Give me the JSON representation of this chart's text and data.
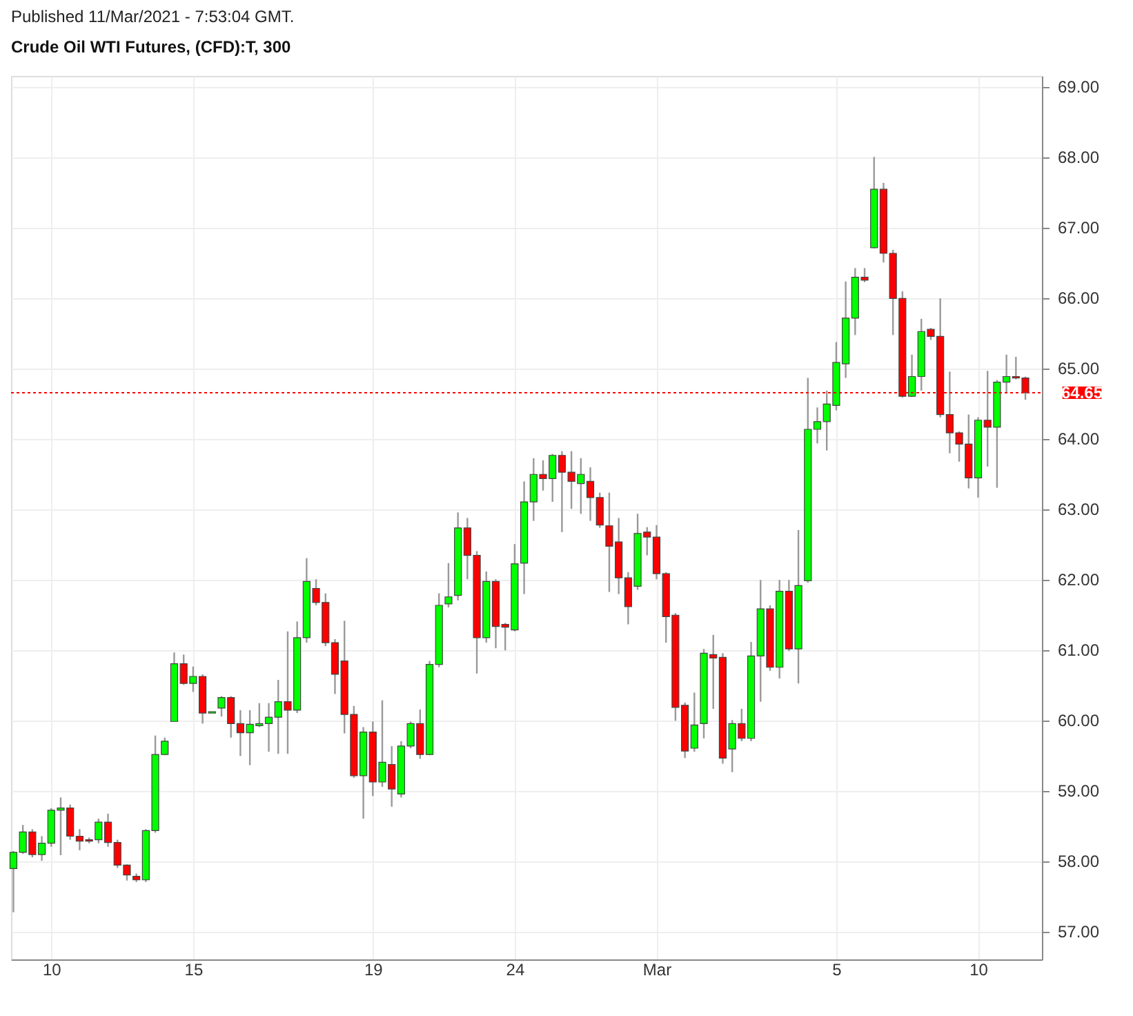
{
  "chart_data": {
    "type": "candlestick",
    "title": "Crude Oil WTI Futures, (CFD):T, 300",
    "annotations": [
      "Published 11/Mar/2021 - 7:53:04 GMT."
    ],
    "categories": [
      null,
      null,
      null,
      null,
      "10",
      null,
      null,
      null,
      null,
      null,
      null,
      null,
      null,
      null,
      null,
      null,
      null,
      null,
      null,
      "15",
      null,
      null,
      null,
      null,
      null,
      null,
      null,
      null,
      null,
      null,
      null,
      null,
      null,
      null,
      null,
      null,
      null,
      null,
      "19",
      null,
      null,
      null,
      null,
      null,
      null,
      null,
      null,
      null,
      null,
      null,
      null,
      null,
      null,
      "24",
      null,
      null,
      null,
      null,
      null,
      null,
      null,
      null,
      null,
      null,
      null,
      null,
      null,
      null,
      "Mar",
      null,
      null,
      null,
      null,
      null,
      null,
      null,
      null,
      null,
      null,
      null,
      null,
      null,
      null,
      null,
      null,
      null,
      null,
      "5",
      null,
      null,
      null,
      null,
      null,
      null,
      null,
      null,
      null,
      null,
      null,
      null,
      null,
      null,
      "10",
      null,
      null,
      null,
      null,
      null
    ],
    "ohlc": [
      [
        57.89,
        58.14,
        57.27,
        58.12
      ],
      [
        58.12,
        58.51,
        58.1,
        58.41
      ],
      [
        58.41,
        58.45,
        58.05,
        58.09
      ],
      [
        58.09,
        58.35,
        58.0,
        58.25
      ],
      [
        58.25,
        58.75,
        58.2,
        58.72
      ],
      [
        58.72,
        58.9,
        58.08,
        58.75
      ],
      [
        58.75,
        58.8,
        58.3,
        58.35
      ],
      [
        58.35,
        58.45,
        58.15,
        58.28
      ],
      [
        58.3,
        58.33,
        58.25,
        58.28
      ],
      [
        58.3,
        58.6,
        58.25,
        58.55
      ],
      [
        58.55,
        58.67,
        58.2,
        58.26
      ],
      [
        58.26,
        58.3,
        57.9,
        57.94
      ],
      [
        57.94,
        57.95,
        57.72,
        57.8
      ],
      [
        57.78,
        57.82,
        57.7,
        57.73
      ],
      [
        57.73,
        58.45,
        57.7,
        58.43
      ],
      [
        58.43,
        59.78,
        58.4,
        59.51
      ],
      [
        59.51,
        59.75,
        59.5,
        59.7
      ],
      [
        59.98,
        60.96,
        59.98,
        60.8
      ],
      [
        60.8,
        60.93,
        60.5,
        60.52
      ],
      [
        60.52,
        60.76,
        60.4,
        60.62
      ],
      [
        60.62,
        60.65,
        59.95,
        60.1
      ],
      [
        60.1,
        60.12,
        60.1,
        60.12
      ],
      [
        60.17,
        60.34,
        60.05,
        60.32
      ],
      [
        60.32,
        60.34,
        59.75,
        59.95
      ],
      [
        59.95,
        60.14,
        59.49,
        59.82
      ],
      [
        59.82,
        60.14,
        59.36,
        59.94
      ],
      [
        59.92,
        60.24,
        59.9,
        59.95
      ],
      [
        59.95,
        60.24,
        59.55,
        60.04
      ],
      [
        60.04,
        60.57,
        59.52,
        60.26
      ],
      [
        60.26,
        61.26,
        59.52,
        60.14
      ],
      [
        60.14,
        61.4,
        60.1,
        61.17
      ],
      [
        61.17,
        62.3,
        61.1,
        61.97
      ],
      [
        61.87,
        62.0,
        61.63,
        61.67
      ],
      [
        61.67,
        61.8,
        61.05,
        61.1
      ],
      [
        61.1,
        61.15,
        60.37,
        60.65
      ],
      [
        60.84,
        61.41,
        59.81,
        60.08
      ],
      [
        60.08,
        60.2,
        59.18,
        59.21
      ],
      [
        59.21,
        59.9,
        58.6,
        59.83
      ],
      [
        59.83,
        59.98,
        58.92,
        59.12
      ],
      [
        59.12,
        60.28,
        59.05,
        59.4
      ],
      [
        59.37,
        59.63,
        58.77,
        59.02
      ],
      [
        58.95,
        59.7,
        58.9,
        59.63
      ],
      [
        59.63,
        59.98,
        59.6,
        59.95
      ],
      [
        59.95,
        60.15,
        59.45,
        59.51
      ],
      [
        59.51,
        60.84,
        59.5,
        60.79
      ],
      [
        60.79,
        61.8,
        60.75,
        61.63
      ],
      [
        61.65,
        62.23,
        61.6,
        61.75
      ],
      [
        61.77,
        62.95,
        61.7,
        62.73
      ],
      [
        62.73,
        62.87,
        62.0,
        62.34
      ],
      [
        62.34,
        62.4,
        60.66,
        61.17
      ],
      [
        61.17,
        62.11,
        61.1,
        61.97
      ],
      [
        61.97,
        62.0,
        61.02,
        61.33
      ],
      [
        61.36,
        61.38,
        60.99,
        61.32
      ],
      [
        61.28,
        62.5,
        61.26,
        62.22
      ],
      [
        62.23,
        63.39,
        61.79,
        63.1
      ],
      [
        63.1,
        63.72,
        62.83,
        63.49
      ],
      [
        63.49,
        63.69,
        63.26,
        63.43
      ],
      [
        63.43,
        63.78,
        63.1,
        63.76
      ],
      [
        63.76,
        63.82,
        62.67,
        63.52
      ],
      [
        63.52,
        63.82,
        63.0,
        63.39
      ],
      [
        63.36,
        63.72,
        62.93,
        63.49
      ],
      [
        63.39,
        63.59,
        62.83,
        63.16
      ],
      [
        63.16,
        63.23,
        62.73,
        62.77
      ],
      [
        62.76,
        63.23,
        61.82,
        62.47
      ],
      [
        62.53,
        62.87,
        61.79,
        62.02
      ],
      [
        62.02,
        62.1,
        61.36,
        61.61
      ],
      [
        61.9,
        62.93,
        61.85,
        62.65
      ],
      [
        62.67,
        62.74,
        62.34,
        62.6
      ],
      [
        62.6,
        62.77,
        62.0,
        62.08
      ],
      [
        62.08,
        62.1,
        61.1,
        61.47
      ],
      [
        61.49,
        61.52,
        59.99,
        60.18
      ],
      [
        60.21,
        60.25,
        59.46,
        59.56
      ],
      [
        59.6,
        60.39,
        59.55,
        59.93
      ],
      [
        59.95,
        61.01,
        59.74,
        60.95
      ],
      [
        60.93,
        61.21,
        60.16,
        60.88
      ],
      [
        60.89,
        60.95,
        59.38,
        59.46
      ],
      [
        59.59,
        60.0,
        59.26,
        59.95
      ],
      [
        59.95,
        60.16,
        59.7,
        59.74
      ],
      [
        59.74,
        61.11,
        59.7,
        60.91
      ],
      [
        60.91,
        61.99,
        60.26,
        61.58
      ],
      [
        61.58,
        61.63,
        60.7,
        60.75
      ],
      [
        60.75,
        61.99,
        60.59,
        61.83
      ],
      [
        61.83,
        61.99,
        60.98,
        61.01
      ],
      [
        61.01,
        62.7,
        60.52,
        61.91
      ],
      [
        61.98,
        64.86,
        61.95,
        64.13
      ],
      [
        64.13,
        64.44,
        63.93,
        64.24
      ],
      [
        64.24,
        64.68,
        63.83,
        64.49
      ],
      [
        64.47,
        65.37,
        64.4,
        65.08
      ],
      [
        65.06,
        66.23,
        64.86,
        65.71
      ],
      [
        65.71,
        66.42,
        65.47,
        66.29
      ],
      [
        66.29,
        66.42,
        66.22,
        66.25
      ],
      [
        66.71,
        68.0,
        66.7,
        67.54
      ],
      [
        67.54,
        67.63,
        66.5,
        66.63
      ],
      [
        66.63,
        66.68,
        65.47,
        65.99
      ],
      [
        65.99,
        66.09,
        64.58,
        64.6
      ],
      [
        64.6,
        65.19,
        64.59,
        64.88
      ],
      [
        64.88,
        65.7,
        64.68,
        65.52
      ],
      [
        65.55,
        65.57,
        65.4,
        65.45
      ],
      [
        65.45,
        65.99,
        64.3,
        64.34
      ],
      [
        64.34,
        64.95,
        63.79,
        64.08
      ],
      [
        64.08,
        64.1,
        63.67,
        63.92
      ],
      [
        63.92,
        64.34,
        63.29,
        63.44
      ],
      [
        63.44,
        64.3,
        63.16,
        64.26
      ],
      [
        64.26,
        64.96,
        63.6,
        64.16
      ],
      [
        64.16,
        64.83,
        63.3,
        64.8
      ],
      [
        64.8,
        65.19,
        64.65,
        64.88
      ],
      [
        64.88,
        65.16,
        64.84,
        64.86
      ],
      [
        64.86,
        64.88,
        64.55,
        64.65
      ]
    ],
    "colors": [
      "#00ff00",
      "#00ff00",
      "#ff0000",
      "#00ff00",
      "#00ff00",
      "#00ff00",
      "#ff0000",
      "#ff0000",
      "#ff0000",
      "#00ff00",
      "#ff0000",
      "#ff0000",
      "#ff0000",
      "#ff0000",
      "#00ff00",
      "#00ff00",
      "#00ff00",
      "#00ff00",
      "#ff0000",
      "#00ff00",
      "#ff0000",
      "#00ff00",
      "#00ff00",
      "#ff0000",
      "#ff0000",
      "#00ff00",
      "#00ff00",
      "#00ff00",
      "#00ff00",
      "#ff0000",
      "#00ff00",
      "#00ff00",
      "#ff0000",
      "#ff0000",
      "#ff0000",
      "#ff0000",
      "#ff0000",
      "#00ff00",
      "#ff0000",
      "#00ff00",
      "#ff0000",
      "#00ff00",
      "#00ff00",
      "#ff0000",
      "#00ff00",
      "#00ff00",
      "#00ff00",
      "#00ff00",
      "#ff0000",
      "#ff0000",
      "#00ff00",
      "#ff0000",
      "#ff0000",
      "#00ff00",
      "#00ff00",
      "#00ff00",
      "#ff0000",
      "#00ff00",
      "#ff0000",
      "#ff0000",
      "#00ff00",
      "#ff0000",
      "#ff0000",
      "#ff0000",
      "#ff0000",
      "#ff0000",
      "#00ff00",
      "#ff0000",
      "#ff0000",
      "#ff0000",
      "#ff0000",
      "#ff0000",
      "#00ff00",
      "#00ff00",
      "#ff0000",
      "#ff0000",
      "#00ff00",
      "#ff0000",
      "#00ff00",
      "#00ff00",
      "#ff0000",
      "#00ff00",
      "#ff0000",
      "#00ff00",
      "#00ff00",
      "#00ff00",
      "#00ff00",
      "#00ff00",
      "#00ff00",
      "#00ff00",
      "#ff0000",
      "#00ff00",
      "#ff0000",
      "#ff0000",
      "#ff0000",
      "#00ff00",
      "#00ff00",
      "#ff0000",
      "#ff0000",
      "#ff0000",
      "#ff0000",
      "#ff0000",
      "#00ff00",
      "#ff0000",
      "#00ff00",
      "#00ff00",
      "#ff0000",
      "#ff0000"
    ],
    "ylim": [
      56.6,
      69.15
    ],
    "yticks": [
      {
        "value": 57,
        "label": "57.00"
      },
      {
        "value": 58,
        "label": "58.00"
      },
      {
        "value": 59,
        "label": "59.00"
      },
      {
        "value": 60,
        "label": "60.00"
      },
      {
        "value": 61,
        "label": "61.00"
      },
      {
        "value": 62,
        "label": "62.00"
      },
      {
        "value": 63,
        "label": "63.00"
      },
      {
        "value": 64,
        "label": "64.00"
      },
      {
        "value": 65,
        "label": "65.00"
      },
      {
        "value": 66,
        "label": "66.00"
      },
      {
        "value": 67,
        "label": "67.00"
      },
      {
        "value": 68,
        "label": "68.00"
      },
      {
        "value": 69,
        "label": "69.00"
      }
    ],
    "ref_lines": [
      {
        "axis": "y",
        "value": 64.65,
        "label": "64.65",
        "color": "#ff0000",
        "line_style": "dotted"
      }
    ],
    "grid": true
  }
}
